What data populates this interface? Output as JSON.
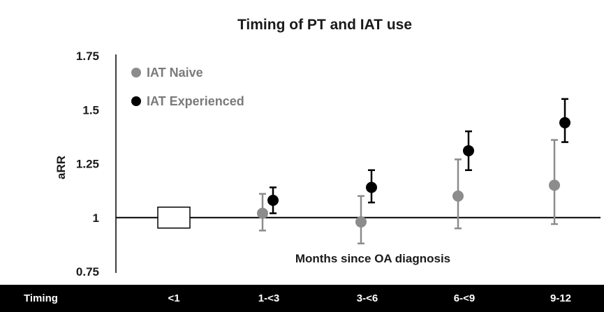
{
  "chart_data": {
    "type": "scatter",
    "title": "Timing of PT and IAT use",
    "ylabel": "aRR",
    "xlabel": "Months since OA diagnosis",
    "ylim": [
      0.75,
      1.75
    ],
    "yticks": [
      0.75,
      1,
      1.25,
      1.5,
      1.75
    ],
    "ytick_labels": [
      "0.75",
      "1",
      "1.25",
      "1.5",
      "1.75"
    ],
    "reference_line": 1,
    "row_header": "Timing",
    "categories": [
      "<1",
      "1-<3",
      "3-<6",
      "6-<9",
      "9-12"
    ],
    "reference_category": "<1",
    "legend_position": "top-left",
    "series": [
      {
        "name": "IAT Naive",
        "color": "#8c8c8c",
        "points": [
          {
            "category": "1-<3",
            "y": 1.02,
            "lower": 0.94,
            "upper": 1.11
          },
          {
            "category": "3-<6",
            "y": 0.98,
            "lower": 0.88,
            "upper": 1.1
          },
          {
            "category": "6-<9",
            "y": 1.1,
            "lower": 0.95,
            "upper": 1.27
          },
          {
            "category": "9-12",
            "y": 1.15,
            "lower": 0.97,
            "upper": 1.36
          }
        ]
      },
      {
        "name": "IAT Experienced",
        "color": "#000000",
        "points": [
          {
            "category": "1-<3",
            "y": 1.08,
            "lower": 1.02,
            "upper": 1.14
          },
          {
            "category": "3-<6",
            "y": 1.14,
            "lower": 1.07,
            "upper": 1.22
          },
          {
            "category": "6-<9",
            "y": 1.31,
            "lower": 1.22,
            "upper": 1.4
          },
          {
            "category": "9-12",
            "y": 1.44,
            "lower": 1.35,
            "upper": 1.55
          }
        ]
      }
    ]
  }
}
